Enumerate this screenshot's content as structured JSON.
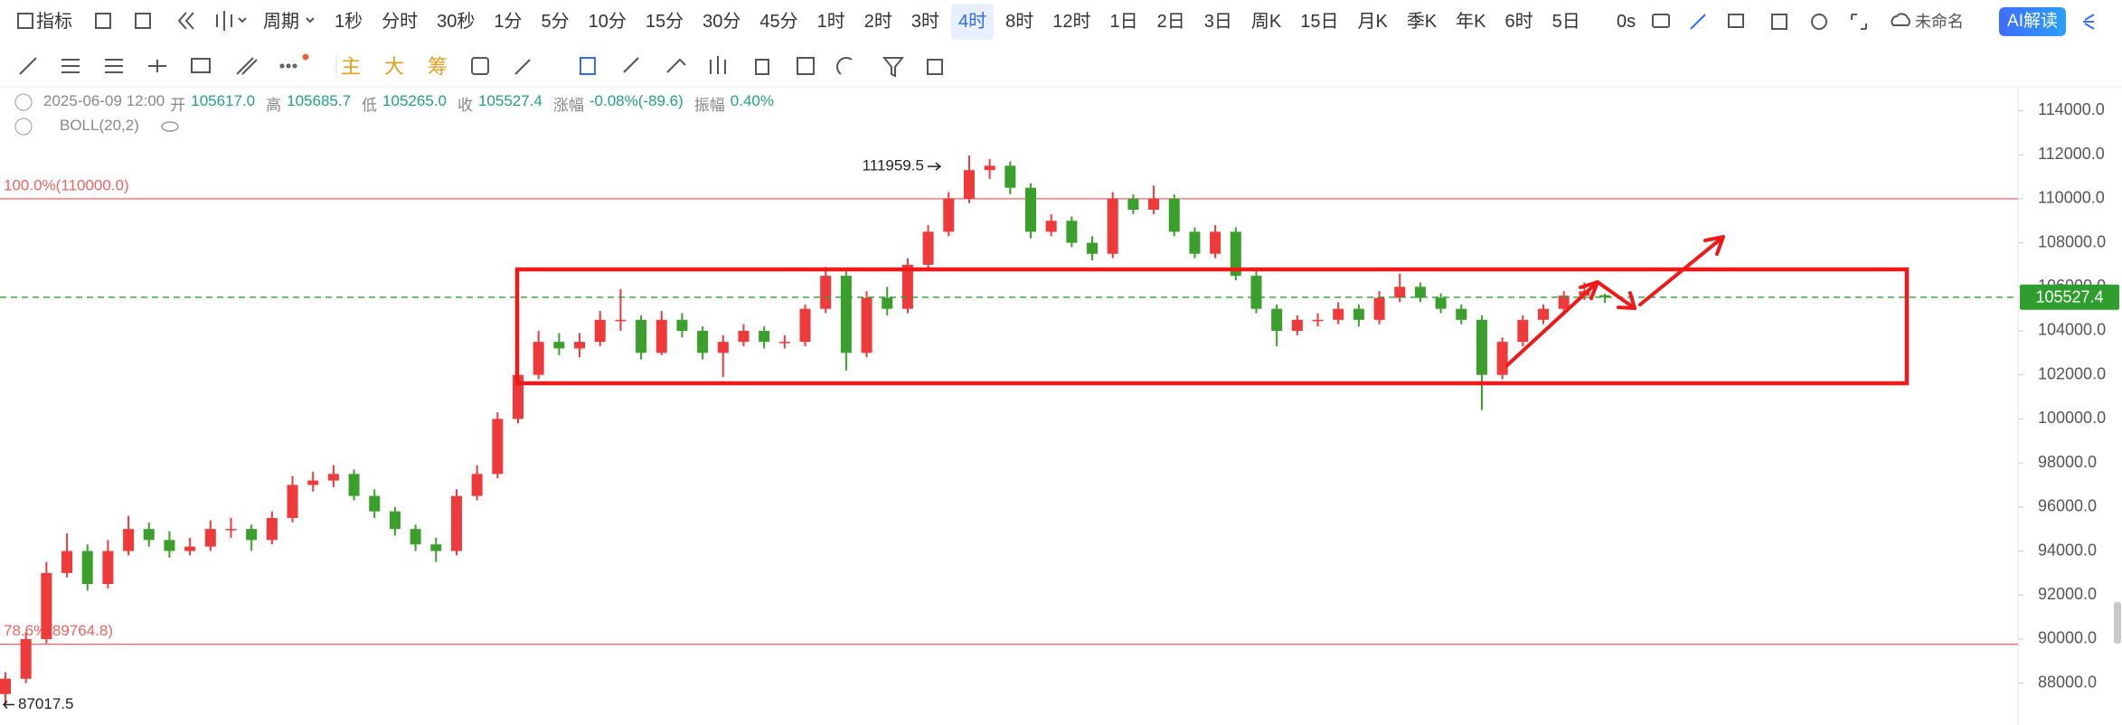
{
  "toolbar": {
    "indicator": "指标",
    "period": "周期",
    "periods": [
      "1秒",
      "分时",
      "30秒",
      "1分",
      "5分",
      "10分",
      "15分",
      "30分",
      "45分",
      "1时",
      "2时",
      "3时",
      "4时",
      "8时",
      "12时",
      "1日",
      "2日",
      "3日",
      "周K",
      "15日",
      "月K",
      "季K",
      "年K",
      "6时",
      "5日"
    ],
    "selected_period_index": 12,
    "timer": "0s",
    "workspace": "未命名",
    "ai": "AI解读",
    "chip_buttons": [
      "主",
      "大",
      "筹"
    ]
  },
  "info": {
    "datetime": "2025-06-09 12:00",
    "fields": [
      {
        "label": "开",
        "value": "105617.0"
      },
      {
        "label": "高",
        "value": "105685.7"
      },
      {
        "label": "低",
        "value": "105265.0"
      },
      {
        "label": "收",
        "value": "105527.4"
      },
      {
        "label": "涨幅",
        "value": "-0.08%(-89.6)"
      },
      {
        "label": "振幅",
        "value": "0.40%"
      }
    ],
    "indicator": "BOLL(20,2)"
  },
  "chart_data": {
    "type": "candlestick",
    "up_color": "#ee3a3a",
    "down_color": "#3b9f2c",
    "open": [
      87500,
      88200,
      90000,
      93000,
      94000,
      92500,
      94000,
      95000,
      94500,
      94000,
      94200,
      95000,
      95000,
      94500,
      95500,
      97000,
      97200,
      97500,
      96500,
      95800,
      95000,
      94300,
      94000,
      96500,
      97500,
      100000,
      102000,
      103500,
      103200,
      103500,
      104500,
      104500,
      103000,
      104500,
      104000,
      103000,
      103500,
      104000,
      103500,
      103500,
      105000,
      106500,
      103000,
      105500,
      105000,
      107000,
      108500,
      110000,
      111300,
      111500,
      110500,
      108500,
      109000,
      108000,
      107500,
      110000,
      109500,
      110000,
      108500,
      107500,
      108500,
      106500,
      105000,
      104000,
      104500,
      104500,
      105000,
      104500,
      105500,
      106000,
      105500,
      105000,
      104500,
      102000,
      103500,
      104500,
      105000,
      105600,
      105617
    ],
    "high": [
      88500,
      90300,
      93500,
      94800,
      94300,
      94500,
      95600,
      95300,
      94900,
      94600,
      95400,
      95500,
      95200,
      95800,
      97400,
      97600,
      97900,
      97700,
      96800,
      96000,
      95200,
      94600,
      96800,
      97900,
      100300,
      102300,
      104000,
      103900,
      103900,
      104900,
      105900,
      104700,
      104900,
      104800,
      104200,
      103800,
      104300,
      104200,
      103800,
      105200,
      106900,
      106700,
      105800,
      106000,
      107300,
      108800,
      110300,
      111959.5,
      111800,
      111700,
      110700,
      109300,
      109200,
      108300,
      110300,
      110200,
      110600,
      110200,
      108700,
      108800,
      108700,
      106700,
      105200,
      104700,
      104800,
      105300,
      105200,
      105800,
      106600,
      106200,
      105700,
      105200,
      104700,
      103700,
      104700,
      105200,
      105800,
      106200,
      105685.7
    ],
    "low": [
      87017.5,
      88000,
      89800,
      92800,
      92200,
      92300,
      93800,
      94200,
      93700,
      93800,
      94000,
      94600,
      94000,
      94300,
      95300,
      96700,
      96900,
      96300,
      95500,
      94700,
      94000,
      93500,
      93800,
      96300,
      97300,
      99800,
      101800,
      102900,
      102800,
      103300,
      104000,
      102700,
      102900,
      103700,
      102700,
      101900,
      103300,
      103200,
      103200,
      103300,
      104800,
      102200,
      102800,
      104700,
      104800,
      106800,
      108300,
      109800,
      110900,
      110200,
      108200,
      108300,
      107800,
      107200,
      107300,
      109300,
      109300,
      108300,
      107300,
      107300,
      106300,
      104800,
      103300,
      103800,
      104200,
      104300,
      104200,
      104300,
      105300,
      105300,
      104800,
      104300,
      100400,
      101800,
      103300,
      104300,
      104800,
      105400,
      105265
    ],
    "close": [
      88200,
      90000,
      93000,
      94000,
      92500,
      94000,
      95000,
      94500,
      94000,
      94200,
      95000,
      95000,
      94500,
      95500,
      97000,
      97200,
      97500,
      96500,
      95800,
      95000,
      94300,
      94000,
      96500,
      97500,
      100000,
      102000,
      103500,
      103200,
      103500,
      104500,
      104500,
      103000,
      104500,
      104000,
      103000,
      103500,
      104000,
      103500,
      103500,
      105000,
      106500,
      103000,
      105500,
      105000,
      107000,
      108500,
      110000,
      111300,
      111500,
      110500,
      108500,
      109000,
      108000,
      107500,
      110000,
      109500,
      110000,
      108500,
      107500,
      108500,
      106500,
      105000,
      104000,
      104500,
      104500,
      105000,
      104500,
      105500,
      106000,
      105500,
      105000,
      104500,
      102000,
      103500,
      104500,
      105000,
      105600,
      105800,
      105527.4
    ],
    "ylim": [
      86096,
      115045
    ],
    "yticks": [
      {
        "value": 88000,
        "label": "88000.0"
      },
      {
        "value": 90000,
        "label": "90000.0"
      },
      {
        "value": 92000,
        "label": "92000.0"
      },
      {
        "value": 94000,
        "label": "94000.0"
      },
      {
        "value": 96000,
        "label": "96000.0"
      },
      {
        "value": 98000,
        "label": "98000.0"
      },
      {
        "value": 100000,
        "label": "100000.0"
      },
      {
        "value": 102000,
        "label": "102000.0"
      },
      {
        "value": 104000,
        "label": "104000.0"
      },
      {
        "value": 106000,
        "label": "106000.0"
      },
      {
        "value": 108000,
        "label": "108000.0"
      },
      {
        "value": 110000,
        "label": "110000.0"
      },
      {
        "value": 112000,
        "label": "112000.0"
      },
      {
        "value": 114000,
        "label": "114000.0"
      }
    ],
    "price_lines": [
      {
        "label": "100.0%(110000.0)",
        "value": 110000,
        "color": "#f06262"
      },
      {
        "label": "78.6%(89764.8)",
        "value": 89764.8,
        "color": "#f06262"
      }
    ],
    "last_price": {
      "value": 105527.4,
      "color": "#2f9e2f"
    },
    "high_label": 111959.5,
    "low_label": 87017.5
  }
}
